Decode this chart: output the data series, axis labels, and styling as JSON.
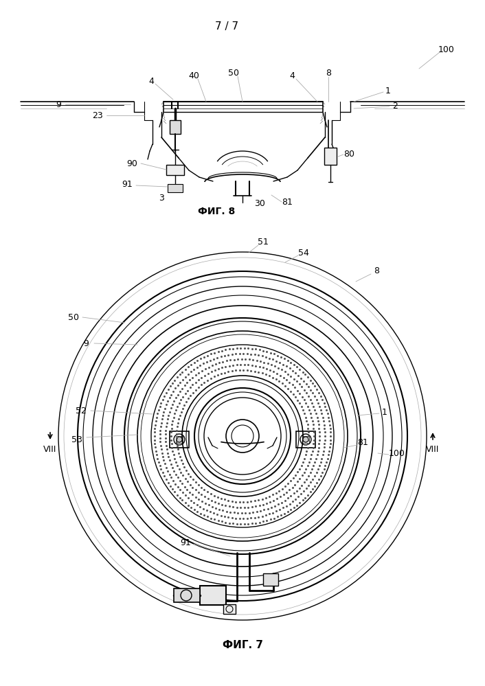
{
  "page_label": "7 / 7",
  "fig8_label": "ФИГ. 8",
  "fig7_label": "ФИГ. 7",
  "bg_color": "#ffffff",
  "line_color": "#000000",
  "gray_color": "#aaaaaa",
  "dark_gray": "#555555"
}
